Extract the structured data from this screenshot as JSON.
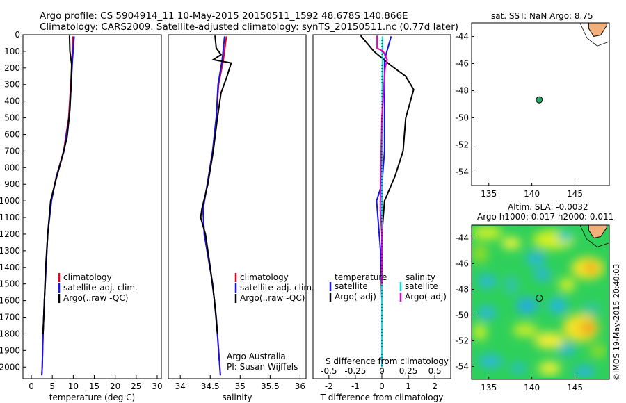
{
  "header": {
    "line1": "Argo profile: CS 5904914_11 10-May-2015 20150511_1592 48.678S 140.866E",
    "line2": "Climatology: CARS2009. Satellite-adjusted climatology: synTS_20150511.nc (0.77d later)"
  },
  "credits": {
    "org": "Argo Australia",
    "pi": "PI: Susan Wijffels"
  },
  "watermark": "©IMOS 19-May-2015 20:40:03",
  "colors": {
    "climatology": "#e8001c",
    "satellite": "#1414e6",
    "argo": "#000000",
    "sal_satellite": "#00e0e0",
    "sal_argo": "#e600c8",
    "land": "#f4b07a"
  },
  "chart_data": [
    {
      "type": "line",
      "name": "temperature-profile",
      "xlabel": "temperature (deg C)",
      "xlim": [
        -2,
        31
      ],
      "ylim": [
        2070,
        0
      ],
      "xticks": [
        0,
        5,
        10,
        15,
        20,
        25,
        30
      ],
      "yticks": [
        0,
        100,
        200,
        300,
        400,
        500,
        600,
        700,
        800,
        900,
        1000,
        1100,
        1200,
        1300,
        1400,
        1500,
        1600,
        1700,
        1800,
        1900,
        2000
      ],
      "legend": [
        "climatology",
        "satellite-adj. clim.",
        "Argo(..raw -QC)"
      ],
      "legend_position": "bottom-right",
      "series": [
        {
          "name": "climatology",
          "color": "#e8001c",
          "points": [
            [
              9.9,
              10
            ],
            [
              9.7,
              150
            ],
            [
              9.4,
              300
            ],
            [
              8.9,
              500
            ],
            [
              7.7,
              700
            ],
            [
              6.0,
              850
            ],
            [
              4.7,
              1000
            ],
            [
              3.9,
              1200
            ],
            [
              3.5,
              1400
            ],
            [
              3.1,
              1600
            ],
            [
              2.8,
              1800
            ],
            [
              2.6,
              2000
            ],
            [
              2.5,
              2050
            ]
          ]
        },
        {
          "name": "satellite-adj. clim.",
          "color": "#1414e6",
          "points": [
            [
              10.2,
              10
            ],
            [
              9.8,
              150
            ],
            [
              9.5,
              300
            ],
            [
              9.0,
              500
            ],
            [
              7.8,
              700
            ],
            [
              6.0,
              850
            ],
            [
              4.8,
              1000
            ],
            [
              3.9,
              1200
            ],
            [
              3.5,
              1400
            ],
            [
              3.1,
              1600
            ],
            [
              2.8,
              1800
            ],
            [
              2.6,
              2000
            ],
            [
              2.5,
              2050
            ]
          ]
        },
        {
          "name": "Argo(..raw -QC)",
          "color": "#000000",
          "points": [
            [
              9.1,
              5
            ],
            [
              9.2,
              100
            ],
            [
              9.6,
              180
            ],
            [
              9.5,
              300
            ],
            [
              9.2,
              450
            ],
            [
              8.8,
              550
            ],
            [
              8.5,
              620
            ],
            [
              7.2,
              750
            ],
            [
              5.8,
              880
            ],
            [
              4.6,
              1000
            ],
            [
              3.9,
              1200
            ],
            [
              3.4,
              1400
            ],
            [
              3.1,
              1600
            ],
            [
              2.8,
              1800
            ]
          ]
        }
      ]
    },
    {
      "type": "line",
      "name": "salinity-profile",
      "xlabel": "salinity",
      "xlim": [
        33.8,
        36.1
      ],
      "ylim": [
        2070,
        0
      ],
      "xticks": [
        34,
        34.5,
        35,
        35.5,
        36
      ],
      "legend": [
        "climatology",
        "satellite-adj. clim.",
        "Argo(..raw -QC)"
      ],
      "legend_position": "bottom-right",
      "series": [
        {
          "name": "climatology",
          "color": "#e8001c",
          "points": [
            [
              34.77,
              10
            ],
            [
              34.72,
              150
            ],
            [
              34.64,
              300
            ],
            [
              34.6,
              500
            ],
            [
              34.54,
              700
            ],
            [
              34.45,
              900
            ],
            [
              34.38,
              1050
            ],
            [
              34.4,
              1200
            ],
            [
              34.47,
              1350
            ],
            [
              34.54,
              1500
            ],
            [
              34.6,
              1700
            ],
            [
              34.64,
              1900
            ],
            [
              34.67,
              2050
            ]
          ]
        },
        {
          "name": "satellite-adj. clim.",
          "color": "#1414e6",
          "points": [
            [
              34.74,
              10
            ],
            [
              34.7,
              150
            ],
            [
              34.63,
              300
            ],
            [
              34.6,
              500
            ],
            [
              34.54,
              700
            ],
            [
              34.45,
              900
            ],
            [
              34.38,
              1050
            ],
            [
              34.4,
              1200
            ],
            [
              34.47,
              1350
            ],
            [
              34.54,
              1500
            ],
            [
              34.6,
              1700
            ],
            [
              34.64,
              1900
            ],
            [
              34.67,
              2050
            ]
          ]
        },
        {
          "name": "Argo(..raw -QC)",
          "color": "#000000",
          "points": [
            [
              34.58,
              5
            ],
            [
              34.6,
              80
            ],
            [
              34.68,
              120
            ],
            [
              34.55,
              150
            ],
            [
              34.85,
              170
            ],
            [
              34.78,
              250
            ],
            [
              34.68,
              350
            ],
            [
              34.62,
              500
            ],
            [
              34.55,
              700
            ],
            [
              34.46,
              900
            ],
            [
              34.36,
              1050
            ],
            [
              34.34,
              1100
            ],
            [
              34.42,
              1200
            ],
            [
              34.5,
              1400
            ],
            [
              34.57,
              1600
            ],
            [
              34.62,
              1800
            ]
          ]
        }
      ]
    },
    {
      "type": "line",
      "name": "difference-profile",
      "xlabel": "T difference from climatology",
      "xlabel_top": "S difference from climatology",
      "xlim": [
        -2.6,
        2.6
      ],
      "ylim": [
        2070,
        0
      ],
      "xticks": [
        -2,
        -1,
        0,
        1,
        2
      ],
      "xticks_top": [
        "-0.5",
        "-0.25",
        "0",
        "0.25",
        "0.5"
      ],
      "legend_groups": [
        {
          "title": "temperature",
          "items": [
            "satellite",
            "Argo(-adj)"
          ]
        },
        {
          "title": "salinity",
          "items": [
            "satellite",
            "Argo(-adj)"
          ]
        }
      ],
      "series": [
        {
          "name": "temperature satellite",
          "color": "#1414e6",
          "points": [
            [
              0.35,
              10
            ],
            [
              0.1,
              150
            ],
            [
              0.1,
              500
            ],
            [
              0.1,
              700
            ],
            [
              0.0,
              900
            ],
            [
              -0.2,
              1000
            ],
            [
              -0.05,
              1300
            ],
            [
              0,
              1600
            ],
            [
              0,
              2000
            ]
          ]
        },
        {
          "name": "temperature Argo(-adj)",
          "color": "#000000",
          "points": [
            [
              -0.8,
              5
            ],
            [
              -0.3,
              100
            ],
            [
              0.3,
              180
            ],
            [
              0.9,
              250
            ],
            [
              1.2,
              330
            ],
            [
              0.9,
              500
            ],
            [
              0.8,
              700
            ],
            [
              0.5,
              850
            ],
            [
              0.1,
              1000
            ],
            [
              0,
              1200
            ],
            [
              0,
              1500
            ],
            [
              0,
              1800
            ]
          ]
        },
        {
          "name": "salinity satellite",
          "color": "#00e0e0",
          "points": [
            [
              0.02,
              10
            ],
            [
              0.02,
              150
            ],
            [
              0.01,
              500
            ],
            [
              0.0,
              900
            ],
            [
              0,
              1200
            ],
            [
              0,
              1600
            ],
            [
              0,
              2000
            ]
          ]
        },
        {
          "name": "salinity Argo(-adj)",
          "color": "#e600c8",
          "points": [
            [
              -0.18,
              5
            ],
            [
              -0.18,
              80
            ],
            [
              0.05,
              100
            ],
            [
              0.2,
              150
            ],
            [
              0.12,
              200
            ],
            [
              0.0,
              500
            ],
            [
              -0.05,
              900
            ],
            [
              -0.06,
              1050
            ],
            [
              0,
              1200
            ],
            [
              0,
              1500
            ]
          ]
        }
      ]
    },
    {
      "type": "scatter",
      "name": "position-map",
      "title": "sat. SST: NaN Argo: 8.75",
      "xlim": [
        133,
        149
      ],
      "ylim": [
        -55,
        -43
      ],
      "xticks": [
        135,
        140,
        145
      ],
      "yticks": [
        -44,
        -46,
        -48,
        -50,
        -52,
        -54
      ],
      "marker": {
        "lon": 140.866,
        "lat": -48.678
      }
    },
    {
      "type": "heatmap",
      "name": "altimetry-map",
      "title_line1": "Altim. SLA: -0.0032",
      "title_line2": "Argo h1000: 0.017 h2000: 0.011",
      "xlim": [
        133,
        149
      ],
      "ylim": [
        -55,
        -43
      ],
      "xticks": [
        135,
        140,
        145
      ],
      "yticks": [
        -44,
        -46,
        -48,
        -50,
        -52,
        -54
      ],
      "marker": {
        "lon": 140.866,
        "lat": -48.678
      }
    }
  ]
}
